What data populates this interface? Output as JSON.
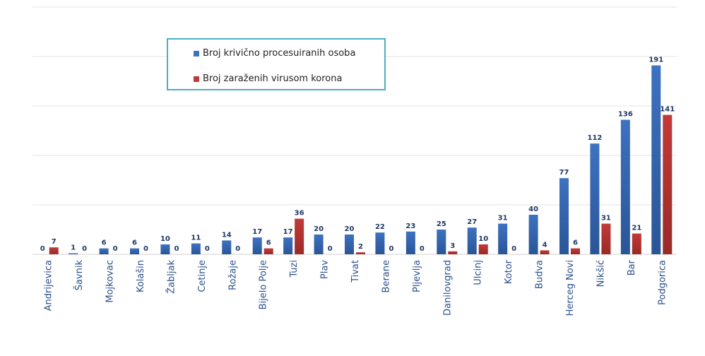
{
  "chart_data": {
    "type": "bar",
    "title": "",
    "xlabel": "",
    "ylabel": "",
    "ylim": [
      0,
      250
    ],
    "grid": true,
    "legend_position": "top-left",
    "categories": [
      "Andrijevica",
      "Šavnik",
      "Mojkovac",
      "Kolašin",
      "Žabljak",
      "Cetinje",
      "Rožaje",
      "Bijelo Polje",
      "Tuzi",
      "Plav",
      "Tivat",
      "Berane",
      "Pljevlja",
      "Danilovgrad",
      "Ulcinj",
      "Kotor",
      "Budva",
      "Herceg Novi",
      "Nikšić",
      "Bar",
      "Podgorica"
    ],
    "series": [
      {
        "name": "Broj krivično procesuiranih osoba",
        "color": "#3d72c0",
        "values": [
          0,
          1,
          6,
          6,
          10,
          11,
          14,
          17,
          17,
          20,
          20,
          22,
          23,
          25,
          27,
          31,
          40,
          77,
          112,
          136,
          191
        ]
      },
      {
        "name": "Broj zaraženih virusom korona",
        "color": "#c23a38",
        "values": [
          7,
          0,
          0,
          0,
          0,
          0,
          0,
          6,
          36,
          0,
          2,
          0,
          0,
          3,
          10,
          0,
          4,
          6,
          31,
          21,
          141
        ]
      }
    ]
  }
}
